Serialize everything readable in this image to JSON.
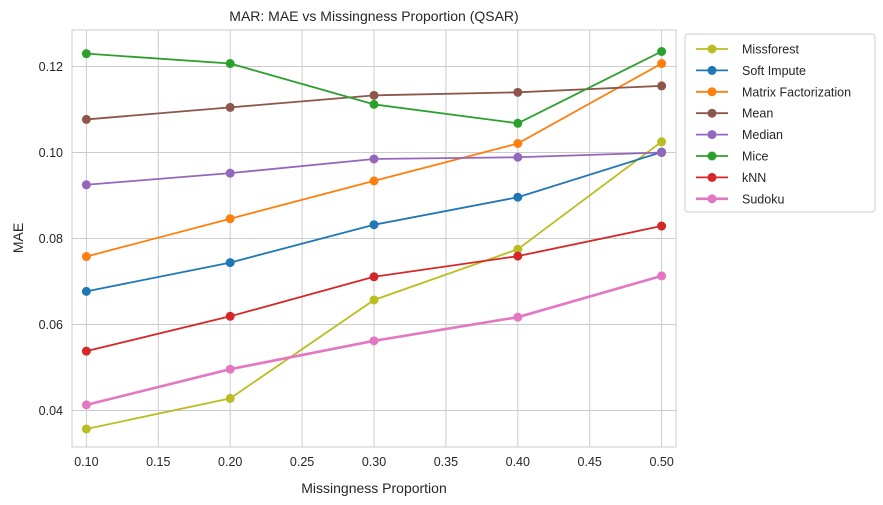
{
  "chart_data": {
    "type": "line",
    "title": "MAR: MAE vs Missingness Proportion (QSAR)",
    "xlabel": "Missingness Proportion",
    "ylabel": "MAE",
    "xlim": [
      0.09,
      0.51
    ],
    "ylim": [
      0.0315,
      0.1285
    ],
    "x_ticks": [
      "0.10",
      "0.15",
      "0.20",
      "0.25",
      "0.30",
      "0.35",
      "0.40",
      "0.45",
      "0.50"
    ],
    "y_ticks": [
      "0.04",
      "0.06",
      "0.08",
      "0.10",
      "0.12"
    ],
    "grid": true,
    "legend_placement": "outside-right",
    "x": [
      0.1,
      0.2,
      0.3,
      0.4,
      0.5
    ],
    "series": [
      {
        "name": "Missforest",
        "color": "#bcbd22",
        "values": [
          0.0357,
          0.0428,
          0.0657,
          0.0775,
          0.1025
        ]
      },
      {
        "name": "Soft Impute",
        "color": "#1f77b4",
        "values": [
          0.0677,
          0.0744,
          0.0832,
          0.0896,
          0.1001
        ]
      },
      {
        "name": "Matrix Factorization",
        "color": "#ff7f0e",
        "values": [
          0.0758,
          0.0846,
          0.0934,
          0.1021,
          0.1207
        ]
      },
      {
        "name": "Mean",
        "color": "#8c564b",
        "values": [
          0.1077,
          0.1105,
          0.1133,
          0.114,
          0.1155
        ]
      },
      {
        "name": "Median",
        "color": "#9467bd",
        "values": [
          0.0925,
          0.0952,
          0.0985,
          0.0989,
          0.1
        ]
      },
      {
        "name": "Mice",
        "color": "#2ca02c",
        "values": [
          0.123,
          0.1207,
          0.1112,
          0.1068,
          0.1235
        ]
      },
      {
        "name": "kNN",
        "color": "#d62728",
        "values": [
          0.0538,
          0.0619,
          0.0711,
          0.0759,
          0.0829
        ]
      },
      {
        "name": "Sudoku",
        "color": "#e377c2",
        "values": [
          0.0413,
          0.0496,
          0.0562,
          0.0617,
          0.0713
        ]
      }
    ]
  }
}
